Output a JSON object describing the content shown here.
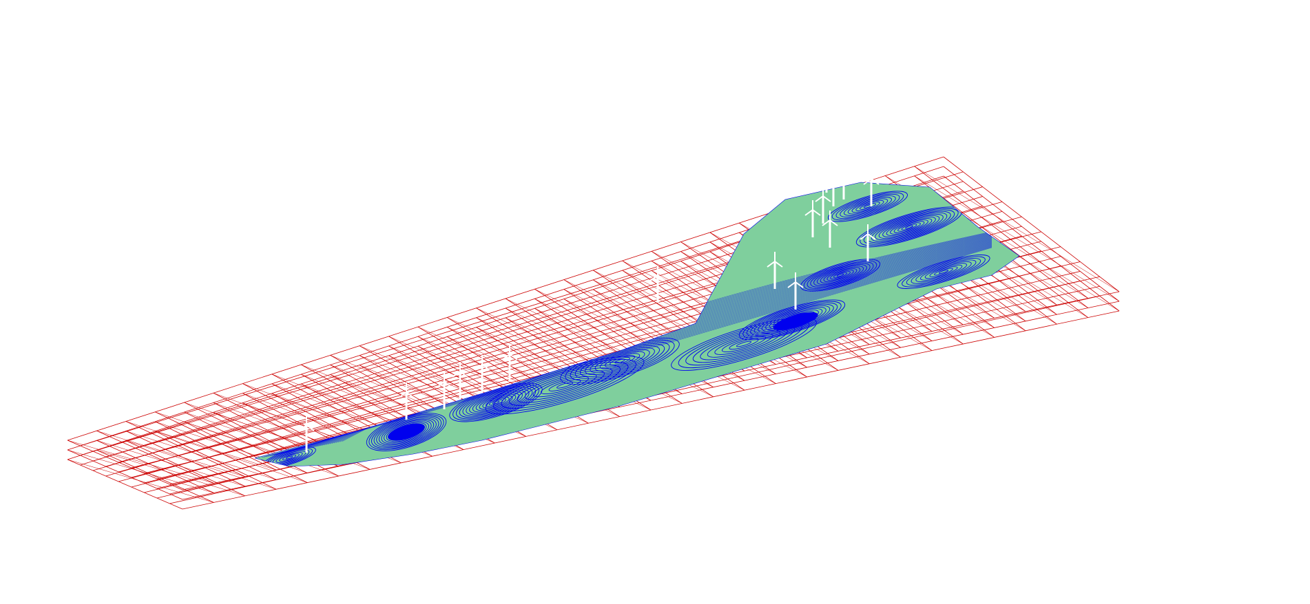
{
  "scene": {
    "background_color": "#ffffff",
    "colors": {
      "mesh_wireframe": "#cc0000",
      "terrain_fill": "#7fcf9d",
      "contour_lines": "#0000ee",
      "turbine": "#ffffff"
    },
    "turbine_count": 17,
    "icons": [
      "wind-turbine-icon"
    ]
  }
}
